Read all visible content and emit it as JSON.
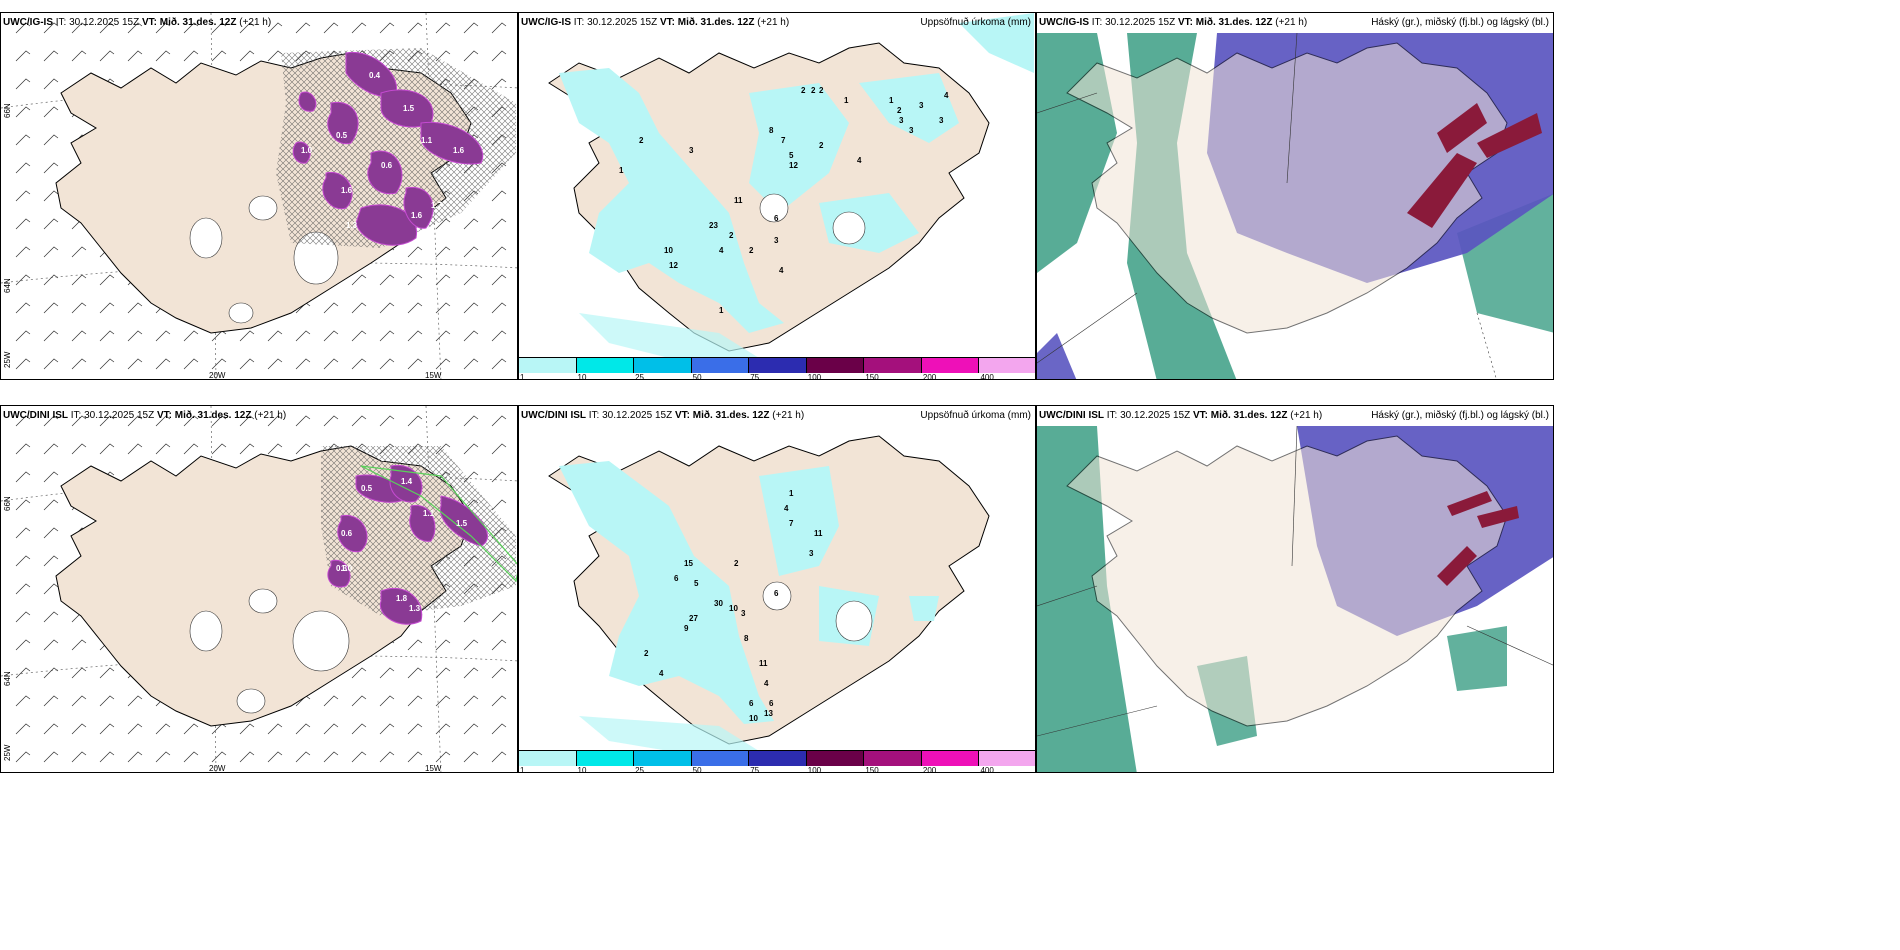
{
  "rows": [
    {
      "model": "UWC/IG-IS",
      "it_label": "IT:",
      "it_value": "30.12.2025 15Z",
      "vt_label": "VT:",
      "vt_value": "Mið. 31.des. 12Z",
      "lead": "(+21 h)"
    },
    {
      "model": "UWC/DINI ISL",
      "it_label": "IT:",
      "it_value": "30.12.2025 15Z",
      "vt_label": "VT:",
      "vt_value": "Mið. 31.des. 12Z",
      "lead": "(+21 h)"
    }
  ],
  "precip_title": "Uppsöfnuð úrkoma (mm)",
  "cloud_title": "Háský (gr.), miðský (fj.bl.) og lágský (bl.)",
  "axis_labels": {
    "lon_20": "20W",
    "lon_15": "15W",
    "lat_66": "66N",
    "lat_64": "64N",
    "lon_25": "25W"
  },
  "precip_scale": {
    "ticks": [
      "1",
      "10",
      "25",
      "50",
      "75",
      "100",
      "150",
      "200",
      "400"
    ],
    "colors": [
      "#b8f6f6",
      "#00e8e8",
      "#00bfe8",
      "#3a6ee8",
      "#2c2cb0",
      "#6a0048",
      "#a4107c",
      "#ee10b8",
      "#f3a6ee"
    ]
  },
  "colors": {
    "land": "#f2e4d6",
    "snow_purple": "#8a3a94",
    "precip_cyan": "#b8f6f6",
    "cloud_high": "#5a55c0",
    "cloud_mid": "#3b9e84",
    "cloud_low": "#6a1a40"
  },
  "precip_numbers_top": [
    "2",
    "2",
    "2",
    "1",
    "1",
    "2",
    "3",
    "3",
    "3",
    "4",
    "3",
    "12",
    "8",
    "7",
    "5",
    "2",
    "4",
    "11",
    "6",
    "23",
    "2",
    "4",
    "2",
    "4",
    "3",
    "10",
    "12",
    "1",
    "3",
    "2",
    "1"
  ],
  "precip_numbers_bottom": [
    "1",
    "4",
    "7",
    "11",
    "3",
    "2",
    "6",
    "3",
    "5",
    "15",
    "6",
    "9",
    "30",
    "27",
    "10",
    "8",
    "11",
    "4",
    "6",
    "6",
    "2",
    "4",
    "10",
    "13"
  ],
  "snow_values_top": [
    "0.4",
    "1.6",
    "1.3",
    "1.5",
    "0.6",
    "1.1",
    "0.5",
    "1.6",
    "1.7",
    "1.6",
    "1.0"
  ],
  "snow_values_bottom": [
    "0.5",
    "1.4",
    "1.1",
    "0.3",
    "1.5",
    "0.6",
    "1.8",
    "1.3",
    "1.0"
  ]
}
